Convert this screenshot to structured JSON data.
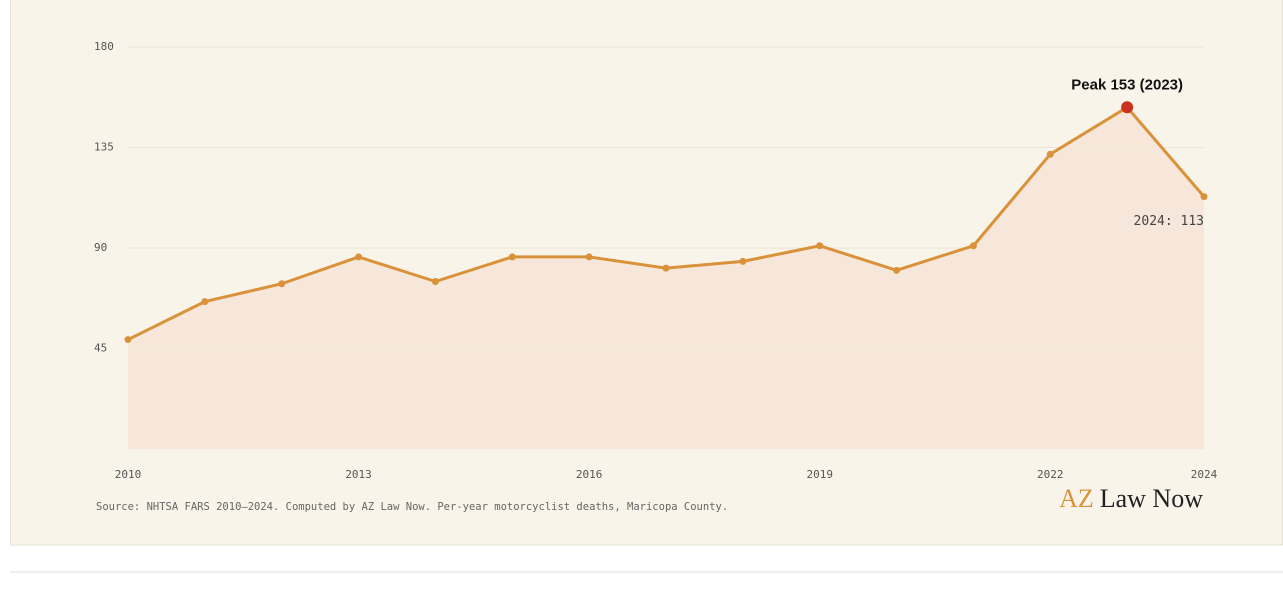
{
  "chart_data": {
    "type": "line",
    "x": [
      2010,
      2011,
      2012,
      2013,
      2014,
      2015,
      2016,
      2017,
      2018,
      2019,
      2020,
      2021,
      2022,
      2023,
      2024
    ],
    "series": [
      {
        "name": "Motorcyclist deaths",
        "color": "#d9923a",
        "values": [
          49,
          66,
          74,
          86,
          75,
          86,
          86,
          81,
          84,
          91,
          80,
          91,
          132,
          153,
          113
        ]
      }
    ],
    "xlim": [
      2010,
      2024
    ],
    "xticks": [
      2010,
      2013,
      2016,
      2019,
      2022,
      2024
    ],
    "ylim": [
      0,
      180
    ],
    "yticks": [
      45,
      90,
      135,
      180
    ],
    "grid": true,
    "area_fill": "#f5e6d8",
    "peak": {
      "index": 13,
      "label": "Peak 153 (2023)",
      "color": "#c8321e"
    },
    "last_label": "2024: 113",
    "source": "Source: NHTSA FARS 2010–2024. Computed by AZ Law Now. Per-year motorcyclist deaths, Maricopa County.",
    "brand": {
      "prefix": "AZ",
      "name": "Law Now"
    }
  }
}
